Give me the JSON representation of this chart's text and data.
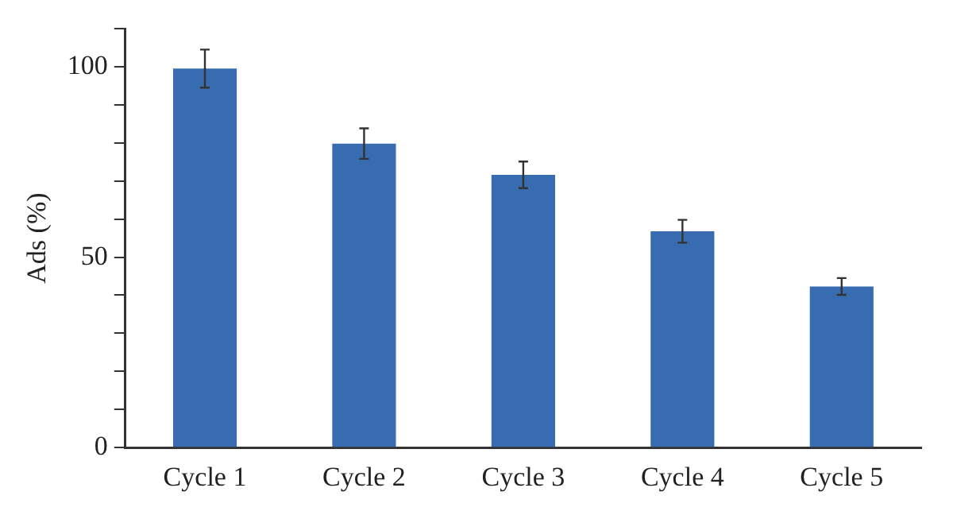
{
  "chart_data": {
    "type": "bar",
    "ylabel": "Ads (%)",
    "categories": [
      "Cycle 1",
      "Cycle 2",
      "Cycle 3",
      "Cycle 4",
      "Cycle 5"
    ],
    "values": [
      99.5,
      79.8,
      71.6,
      56.8,
      42.3
    ],
    "errors": [
      5,
      4,
      3.5,
      3,
      2.2
    ],
    "color": "#376cb0",
    "ylim": [
      0,
      110
    ],
    "yticks": [
      0,
      {
        "value": 10,
        "label": null
      },
      {
        "value": 20,
        "label": null
      },
      {
        "value": 30,
        "label": null
      },
      {
        "value": 40,
        "label": null
      },
      50,
      {
        "value": 60,
        "label": null
      },
      {
        "value": 70,
        "label": null
      },
      {
        "value": 80,
        "label": null
      },
      {
        "value": 90,
        "label": null
      },
      100,
      {
        "value": 110,
        "label": null
      }
    ],
    "grid": false,
    "legend": false
  }
}
